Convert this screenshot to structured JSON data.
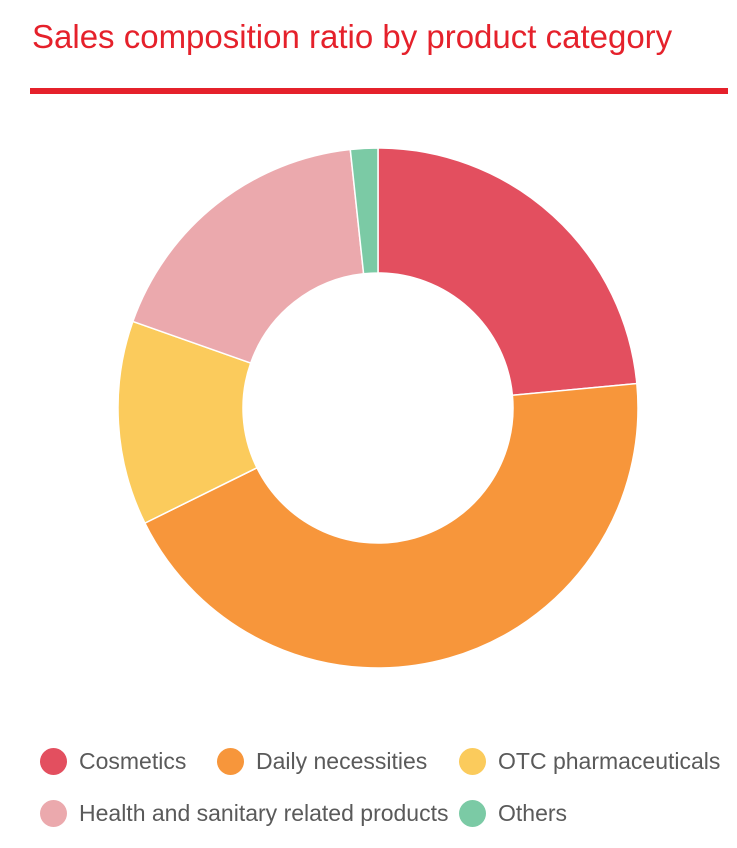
{
  "title": "Sales composition ratio by product category",
  "accent_color": "#e5212b",
  "chart_data": {
    "type": "pie",
    "variant": "donut",
    "title": "Sales composition ratio by product category",
    "categories": [
      "Cosmetics",
      "Daily necessities",
      "OTC pharmaceuticals",
      "Health and sanitary related products",
      "Others"
    ],
    "values": [
      23.5,
      44.2,
      12.7,
      17.9,
      1.7
    ],
    "unit": "%",
    "colors": [
      "#e34f5f",
      "#f7963b",
      "#fbcb5c",
      "#eba9ad",
      "#7bcaa5"
    ],
    "start_angle": "12 o'clock",
    "direction": "clockwise",
    "legend_position": "bottom"
  },
  "legend": [
    {
      "label": "Cosmetics",
      "color": "#e34f5f"
    },
    {
      "label": "Daily necessities",
      "color": "#f7963b"
    },
    {
      "label": "OTC pharmaceuticals",
      "color": "#fbcb5c"
    },
    {
      "label": "Health and sanitary related products",
      "color": "#eba9ad"
    },
    {
      "label": "Others",
      "color": "#7bcaa5"
    }
  ]
}
